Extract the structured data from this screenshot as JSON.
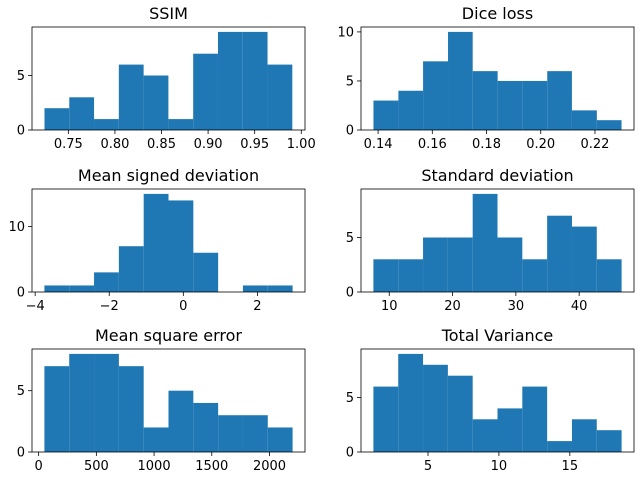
{
  "chart_data": [
    {
      "type": "bar",
      "title": "SSIM",
      "bin_edges": [
        0.7244,
        0.751,
        0.7776,
        0.8042,
        0.8308,
        0.8574,
        0.884,
        0.9106,
        0.9372,
        0.9638,
        0.9904
      ],
      "values": [
        2,
        3,
        1,
        6,
        5,
        1,
        7,
        9,
        9,
        6
      ],
      "xlim": [
        0.711,
        1.004
      ],
      "ylim": [
        0,
        9.45
      ],
      "xticks": [
        0.75,
        0.8,
        0.85,
        0.9,
        0.95,
        1.0
      ],
      "xtick_labels": [
        "0.75",
        "0.80",
        "0.85",
        "0.90",
        "0.95",
        "1.00"
      ],
      "yticks": [
        0,
        5
      ],
      "ytick_labels": [
        "0",
        "5"
      ],
      "color": "#1f77b4"
    },
    {
      "type": "bar",
      "title": "Dice loss",
      "bin_edges": [
        0.1383,
        0.1475,
        0.1566,
        0.1658,
        0.1749,
        0.1841,
        0.1932,
        0.2024,
        0.2115,
        0.2207,
        0.2298
      ],
      "values": [
        3,
        4,
        7,
        10,
        6,
        5,
        5,
        6,
        2,
        1
      ],
      "xlim": [
        0.1337,
        0.2344
      ],
      "ylim": [
        0,
        10.5
      ],
      "xticks": [
        0.14,
        0.16,
        0.18,
        0.2,
        0.22
      ],
      "xtick_labels": [
        "0.14",
        "0.16",
        "0.18",
        "0.20",
        "0.22"
      ],
      "yticks": [
        0,
        5,
        10
      ],
      "ytick_labels": [
        "0",
        "5",
        "10"
      ],
      "color": "#1f77b4"
    },
    {
      "type": "bar",
      "title": "Mean signed deviation",
      "bin_edges": [
        -3.75,
        -3.08,
        -2.41,
        -1.74,
        -1.07,
        -0.4,
        0.27,
        0.94,
        1.61,
        2.28,
        2.95
      ],
      "values": [
        1,
        1,
        3,
        7,
        15,
        14,
        6,
        0,
        1,
        1
      ],
      "xlim": [
        -4.085,
        3.285
      ],
      "ylim": [
        0,
        15.75
      ],
      "xticks": [
        -4,
        -2,
        0,
        2
      ],
      "xtick_labels": [
        "−4",
        "−2",
        "0",
        "2"
      ],
      "yticks": [
        0,
        10
      ],
      "ytick_labels": [
        "0",
        "10"
      ],
      "color": "#1f77b4"
    },
    {
      "type": "bar",
      "title": "Standard deviation",
      "bin_edges": [
        7.5,
        11.42,
        15.34,
        19.26,
        23.18,
        27.1,
        31.02,
        34.94,
        38.86,
        42.78,
        46.7
      ],
      "values": [
        3,
        3,
        5,
        5,
        9,
        5,
        3,
        7,
        6,
        3
      ],
      "xlim": [
        5.54,
        48.66
      ],
      "ylim": [
        0,
        9.45
      ],
      "xticks": [
        10,
        20,
        30,
        40
      ],
      "xtick_labels": [
        "10",
        "20",
        "30",
        "40"
      ],
      "yticks": [
        0,
        5
      ],
      "ytick_labels": [
        "0",
        "5"
      ],
      "color": "#1f77b4"
    },
    {
      "type": "bar",
      "title": "Mean square error",
      "bin_edges": [
        50,
        265,
        480,
        695,
        910,
        1125,
        1340,
        1555,
        1770,
        1985,
        2200
      ],
      "values": [
        7,
        8,
        8,
        7,
        2,
        5,
        4,
        3,
        3,
        2
      ],
      "xlim": [
        -57.5,
        2307.5
      ],
      "ylim": [
        0,
        8.4
      ],
      "xticks": [
        0,
        500,
        1000,
        1500,
        2000
      ],
      "xtick_labels": [
        "0",
        "500",
        "1000",
        "1500",
        "2000"
      ],
      "yticks": [
        0,
        5
      ],
      "ytick_labels": [
        "0",
        "5"
      ],
      "color": "#1f77b4"
    },
    {
      "type": "bar",
      "title": "Total Variance",
      "bin_edges": [
        1.15,
        2.9,
        4.65,
        6.4,
        8.15,
        9.9,
        11.65,
        13.4,
        15.15,
        16.9,
        18.65
      ],
      "values": [
        6,
        9,
        8,
        7,
        3,
        4,
        6,
        1,
        3,
        2
      ],
      "xlim": [
        0.275,
        19.525
      ],
      "ylim": [
        0,
        9.45
      ],
      "xticks": [
        5,
        10,
        15
      ],
      "xtick_labels": [
        "5",
        "10",
        "15"
      ],
      "yticks": [
        0,
        5
      ],
      "ytick_labels": [
        "0",
        "5"
      ],
      "color": "#1f77b4"
    }
  ]
}
